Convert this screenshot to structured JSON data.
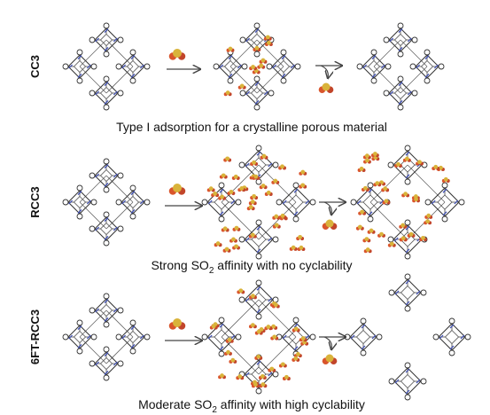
{
  "rows": [
    {
      "label": "CC3",
      "caption": [
        "Type I adsorption for a crystalline porous material"
      ]
    },
    {
      "label": "RCC3",
      "caption": [
        "Strong SO",
        "2",
        " affinity with no cyclability"
      ]
    },
    {
      "label": "6FT-RCC3",
      "caption": [
        "Moderate SO",
        "2",
        " affinity with high cyclability"
      ]
    }
  ]
}
